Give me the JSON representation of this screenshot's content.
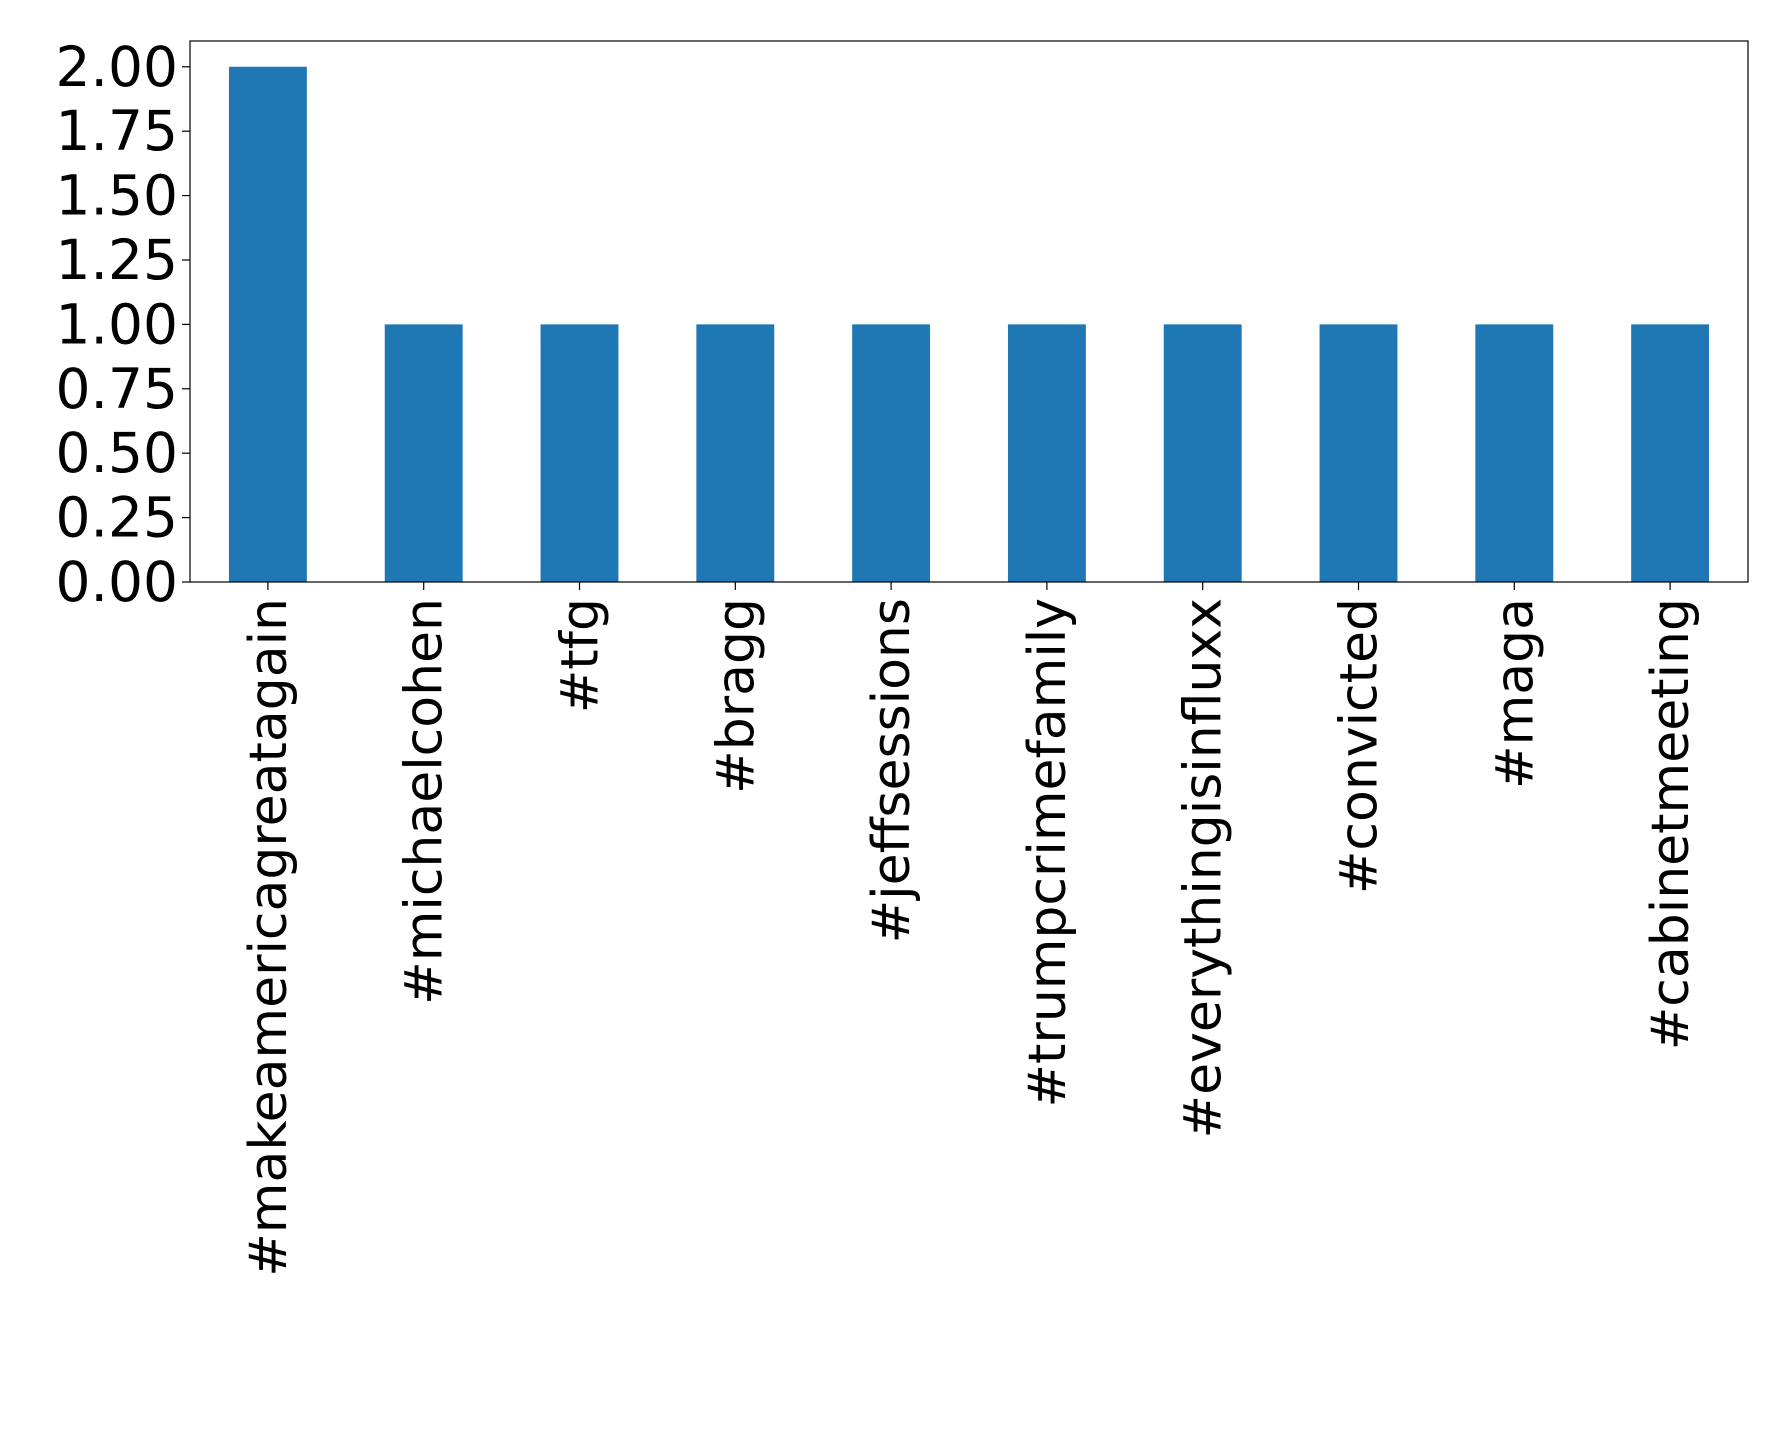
{
  "chart_data": {
    "type": "bar",
    "title": "",
    "xlabel": "",
    "ylabel": "",
    "categories": [
      "#makeamericagreatagain",
      "#michaelcohen",
      "#tfg",
      "#bragg",
      "#jeffsessions",
      "#trumpcrimefamily",
      "#everythingisinfluxx",
      "#convicted",
      "#maga",
      "#cabinetmeeting"
    ],
    "values": [
      2,
      1,
      1,
      1,
      1,
      1,
      1,
      1,
      1,
      1
    ],
    "ylim": [
      0,
      2.1
    ],
    "yticks": [
      "0.00",
      "0.25",
      "0.50",
      "0.75",
      "1.00",
      "1.25",
      "1.50",
      "1.75",
      "2.00"
    ],
    "bar_color": "#1f77b4",
    "grid": false,
    "legend": "none"
  }
}
